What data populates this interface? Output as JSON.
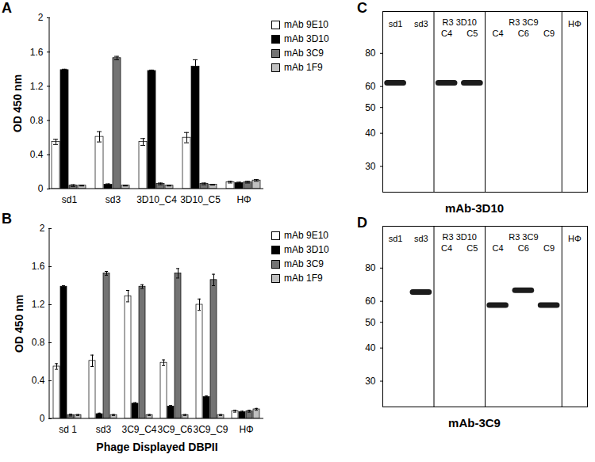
{
  "chart_data": [
    {
      "type": "bar",
      "panel": "A",
      "ylabel": "OD 450 nm",
      "categories": [
        "sd1",
        "sd3",
        "3D10_C4",
        "3D10_C5",
        "HΦ"
      ],
      "series": [
        {
          "name": "mAb 9E10",
          "color": "#ffffff",
          "values": [
            0.55,
            0.61,
            0.55,
            0.6,
            0.08
          ],
          "errors": [
            0.03,
            0.06,
            0.04,
            0.06,
            0.01
          ]
        },
        {
          "name": "mAb 3D10",
          "color": "#000000",
          "values": [
            1.39,
            0.05,
            1.38,
            1.43,
            0.07
          ],
          "errors": [
            0.01,
            0.01,
            0.01,
            0.08,
            0.01
          ]
        },
        {
          "name": "mAb 3C9",
          "color": "#737373",
          "values": [
            0.04,
            1.53,
            0.06,
            0.06,
            0.08
          ],
          "errors": [
            0.01,
            0.02,
            0.01,
            0.01,
            0.01
          ]
        },
        {
          "name": "mAb 1F9",
          "color": "#bfbfbf",
          "values": [
            0.04,
            0.04,
            0.04,
            0.05,
            0.1
          ],
          "errors": [
            0.005,
            0.005,
            0.005,
            0.005,
            0.01
          ]
        }
      ],
      "ylim": [
        0,
        2
      ],
      "yticks": [
        0,
        0.4,
        0.8,
        1.2,
        1.6,
        2
      ],
      "grid": false,
      "legend": "top-right"
    },
    {
      "type": "bar",
      "panel": "B",
      "ylabel": "OD 450 nm",
      "xlabel": "Phage Displayed DBPII",
      "categories": [
        "sd 1",
        "sd3",
        "3C9_C4",
        "3C9_C6",
        "3C9_C9",
        "HΦ"
      ],
      "series": [
        {
          "name": "mAb 9E10",
          "color": "#ffffff",
          "values": [
            0.55,
            0.61,
            1.29,
            0.59,
            1.2,
            0.08
          ],
          "errors": [
            0.03,
            0.06,
            0.06,
            0.03,
            0.06,
            0.01
          ]
        },
        {
          "name": "mAb 3D10",
          "color": "#000000",
          "values": [
            1.39,
            0.05,
            0.16,
            0.13,
            0.23,
            0.07
          ],
          "errors": [
            0.01,
            0.01,
            0.01,
            0.01,
            0.01,
            0.01
          ]
        },
        {
          "name": "mAb 3C9",
          "color": "#737373",
          "values": [
            0.04,
            1.53,
            1.39,
            1.53,
            1.46,
            0.08
          ],
          "errors": [
            0.01,
            0.02,
            0.02,
            0.05,
            0.06,
            0.01
          ]
        },
        {
          "name": "mAb 1F9",
          "color": "#bfbfbf",
          "values": [
            0.04,
            0.04,
            0.04,
            0.04,
            0.04,
            0.1
          ],
          "errors": [
            0.005,
            0.005,
            0.005,
            0.005,
            0.005,
            0.01
          ]
        }
      ],
      "ylim": [
        0,
        2
      ],
      "yticks": [
        0,
        0.4,
        0.8,
        1.2,
        1.6,
        2
      ],
      "grid": false,
      "legend": "top-right"
    },
    {
      "type": "blot",
      "panel": "C",
      "title": "mAb-3D10",
      "categories": [
        "sd1",
        "sd3",
        "C4",
        "C5",
        "C4",
        "C6",
        "C9",
        "HΦ"
      ],
      "group_labels": [
        null,
        null,
        "R3 3D10",
        "R3 3D10",
        "R3 3C9",
        "R3 3C9",
        "R3 3C9",
        null
      ],
      "values": [
        62,
        null,
        62,
        62,
        null,
        null,
        null,
        null
      ],
      "ylim": [
        24,
        115
      ],
      "yticks": [
        30,
        40,
        50,
        60,
        80
      ],
      "log": "y",
      "tick_labels": "y"
    },
    {
      "type": "blot",
      "panel": "D",
      "title": "mAb-3C9",
      "categories": [
        "sd1",
        "sd3",
        "C4",
        "C5",
        "C4",
        "C6",
        "C9",
        "HΦ"
      ],
      "group_labels": [
        null,
        null,
        "R3 3D10",
        "R3 3D10",
        "R3 3C9",
        "R3 3C9",
        "R3 3C9",
        null
      ],
      "values": [
        null,
        65,
        null,
        null,
        58,
        66,
        58,
        null
      ],
      "ylim": [
        24,
        115
      ],
      "yticks": [
        30,
        40,
        50,
        60,
        80
      ],
      "log": "y",
      "tick_labels": "y"
    }
  ]
}
